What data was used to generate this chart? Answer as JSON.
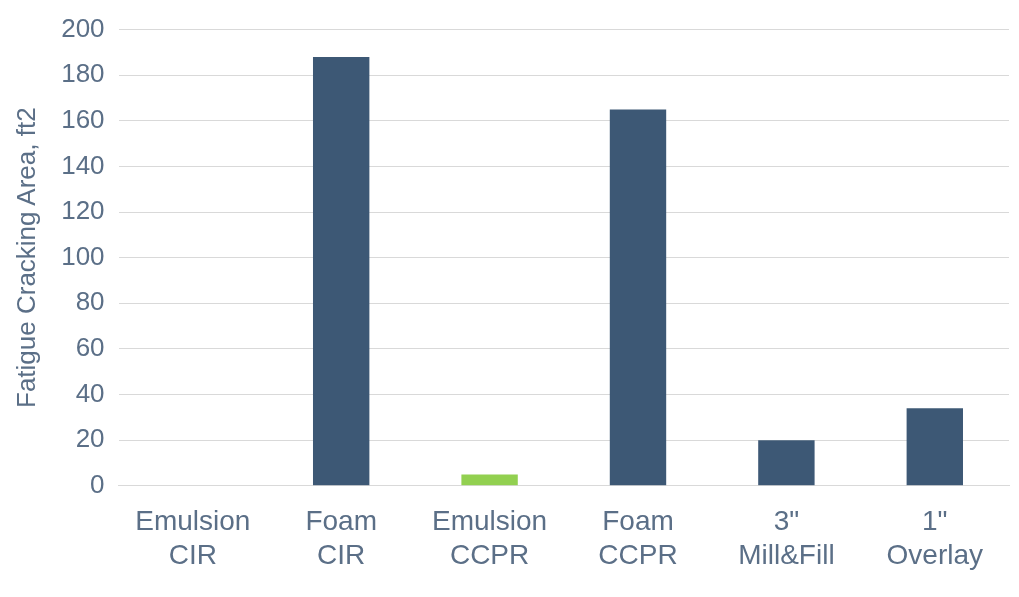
{
  "chart_data": {
    "type": "bar",
    "ylabel": "Fatigue Cracking Area, ft2",
    "categories": [
      "Emulsion CIR",
      "Foam CIR",
      "Emulsion CCPR",
      "Foam CCPR",
      "3\" Mill&Fill",
      "1\" Overlay"
    ],
    "values": [
      0,
      188,
      5,
      165,
      20,
      34
    ],
    "colors": [
      "#3d5875",
      "#3d5875",
      "#92d050",
      "#3d5875",
      "#3d5875",
      "#3d5875"
    ],
    "ylim": [
      0,
      200
    ],
    "yticks": [
      0,
      20,
      40,
      60,
      80,
      100,
      120,
      140,
      160,
      180,
      200
    ],
    "grid": "y",
    "legend": false
  }
}
